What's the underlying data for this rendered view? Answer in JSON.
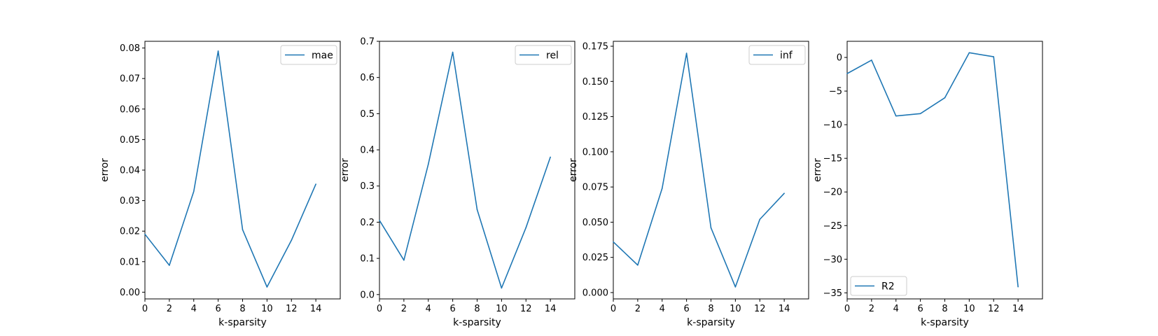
{
  "chart_data": [
    {
      "type": "line",
      "xlabel": "k-sparsity",
      "ylabel": "error",
      "xlim": [
        0,
        16
      ],
      "ylim": [
        -0.0022,
        0.0822
      ],
      "xticks": [
        "0",
        "2",
        "4",
        "6",
        "8",
        "10",
        "12",
        "14"
      ],
      "yticks": [
        "0.00",
        "0.01",
        "0.02",
        "0.03",
        "0.04",
        "0.05",
        "0.06",
        "0.07",
        "0.08"
      ],
      "legend_position": "upper right",
      "series": [
        {
          "name": "mae",
          "color": "#1f77b4",
          "x": [
            0,
            2,
            4,
            6,
            8,
            10,
            12,
            14
          ],
          "values": [
            0.019,
            0.0088,
            0.033,
            0.079,
            0.0205,
            0.0017,
            0.017,
            0.0354
          ]
        }
      ]
    },
    {
      "type": "line",
      "xlabel": "k-sparsity",
      "ylabel": "error",
      "xlim": [
        0,
        16
      ],
      "ylim": [
        -0.012,
        0.7
      ],
      "xticks": [
        "0",
        "2",
        "4",
        "6",
        "8",
        "10",
        "12",
        "14"
      ],
      "yticks": [
        "0.0",
        "0.1",
        "0.2",
        "0.3",
        "0.4",
        "0.5",
        "0.6",
        "0.7"
      ],
      "legend_position": "upper right",
      "series": [
        {
          "name": "rel",
          "color": "#1f77b4",
          "x": [
            0,
            2,
            4,
            6,
            8,
            10,
            12,
            14
          ],
          "values": [
            0.205,
            0.095,
            0.36,
            0.67,
            0.235,
            0.018,
            0.185,
            0.38
          ]
        }
      ]
    },
    {
      "type": "line",
      "xlabel": "k-sparsity",
      "ylabel": "error",
      "xlim": [
        0,
        16
      ],
      "ylim": [
        -0.0045,
        0.1785
      ],
      "xticks": [
        "0",
        "2",
        "4",
        "6",
        "8",
        "10",
        "12",
        "14"
      ],
      "yticks": [
        "0.000",
        "0.025",
        "0.050",
        "0.075",
        "0.100",
        "0.125",
        "0.150",
        "0.175"
      ],
      "legend_position": "upper right",
      "series": [
        {
          "name": "inf",
          "color": "#1f77b4",
          "x": [
            0,
            2,
            4,
            6,
            8,
            10,
            12,
            14
          ],
          "values": [
            0.036,
            0.0195,
            0.074,
            0.17,
            0.046,
            0.004,
            0.052,
            0.0705
          ]
        }
      ]
    },
    {
      "type": "line",
      "xlabel": "k-sparsity",
      "ylabel": "error",
      "xlim": [
        0,
        16
      ],
      "ylim": [
        -35.9,
        2.4
      ],
      "xticks": [
        "0",
        "2",
        "4",
        "6",
        "8",
        "10",
        "12",
        "14"
      ],
      "yticks": [
        "0",
        "−5",
        "−10",
        "−15",
        "−20",
        "−25",
        "−30",
        "−35"
      ],
      "ytick_values": [
        0,
        -5,
        -10,
        -15,
        -20,
        -25,
        -30,
        -35
      ],
      "legend_position": "lower left",
      "series": [
        {
          "name": "R2",
          "color": "#1f77b4",
          "x": [
            0,
            2,
            4,
            6,
            8,
            10,
            12,
            14
          ],
          "values": [
            -2.4,
            -0.4,
            -8.7,
            -8.35,
            -6.0,
            0.7,
            0.1,
            -34.1
          ]
        }
      ]
    }
  ]
}
